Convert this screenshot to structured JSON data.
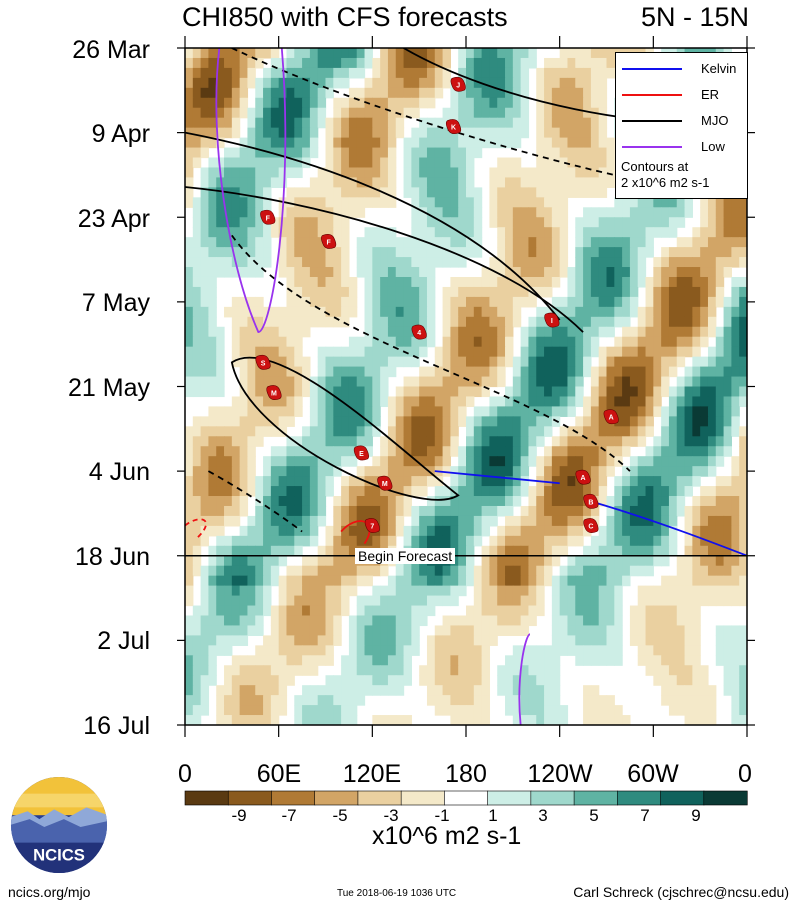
{
  "title": "CHI850 with CFS forecasts",
  "region": "5N - 15N",
  "begin_forecast": "Begin Forecast",
  "colorbar_units": "x10^6 m2 s-1",
  "footer": {
    "left": "ncics.org/mjo",
    "middle": "Tue 2018-06-19 1036 UTC",
    "right": "Carl Schreck (cjschrec@ncsu.edu)"
  },
  "logo_text": "NCICS",
  "legend": {
    "items": [
      {
        "label": "Kelvin",
        "color": "#1010ee"
      },
      {
        "label": "ER",
        "color": "#ee1010"
      },
      {
        "label": "MJO",
        "color": "#000000"
      },
      {
        "label": "Low",
        "color": "#9933ee"
      }
    ],
    "note_line1": "Contours at",
    "note_line2": "2 x10^6 m2 s-1"
  },
  "chart_data": {
    "type": "heatmap",
    "title": "CHI850 with CFS forecasts",
    "subtitle": "5N - 15N",
    "x_ticks": [
      "0",
      "60E",
      "120E",
      "180",
      "120W",
      "60W",
      "0"
    ],
    "y_ticks": [
      "26 Mar",
      "9 Apr",
      "23 Apr",
      "7 May",
      "21 May",
      "4 Jun",
      "18 Jun",
      "2 Jul",
      "16 Jul"
    ],
    "colorbar": {
      "labels": [
        "-9",
        "-7",
        "-5",
        "-3",
        "-1",
        "1",
        "3",
        "5",
        "7",
        "9"
      ],
      "colors": [
        "#5a3a12",
        "#8a5a1e",
        "#b07a35",
        "#d2a566",
        "#ead0a0",
        "#f4e9c9",
        "#ffffff",
        "#cdeee6",
        "#9fd8cc",
        "#5fb3a3",
        "#2f8b7f",
        "#10625c",
        "#0a3a35"
      ]
    },
    "storm_markers": [
      {
        "label": "J",
        "lon": 175,
        "date": "1 Apr"
      },
      {
        "label": "K",
        "lon": 172,
        "date": "8 Apr"
      },
      {
        "label": "F",
        "lon": 53,
        "date": "23 Apr"
      },
      {
        "label": "F",
        "lon": 92,
        "date": "27 Apr"
      },
      {
        "label": "4",
        "lon": 150,
        "date": "12 May"
      },
      {
        "label": "I",
        "lon": 235,
        "date": "10 May"
      },
      {
        "label": "S",
        "lon": 50,
        "date": "17 May"
      },
      {
        "label": "M",
        "lon": 57,
        "date": "22 May"
      },
      {
        "label": "A",
        "lon": 273,
        "date": "26 May"
      },
      {
        "label": "E",
        "lon": 113,
        "date": "1 Jun"
      },
      {
        "label": "A",
        "lon": 255,
        "date": "5 Jun"
      },
      {
        "label": "M",
        "lon": 128,
        "date": "6 Jun"
      },
      {
        "label": "B",
        "lon": 260,
        "date": "9 Jun"
      },
      {
        "label": "C",
        "lon": 260,
        "date": "13 Jun"
      },
      {
        "label": "7",
        "lon": 120,
        "date": "13 Jun"
      }
    ],
    "colors": {
      "kelvin": "#1010ee",
      "er": "#ee1010",
      "mjo": "#000000",
      "low": "#9933ee"
    }
  }
}
